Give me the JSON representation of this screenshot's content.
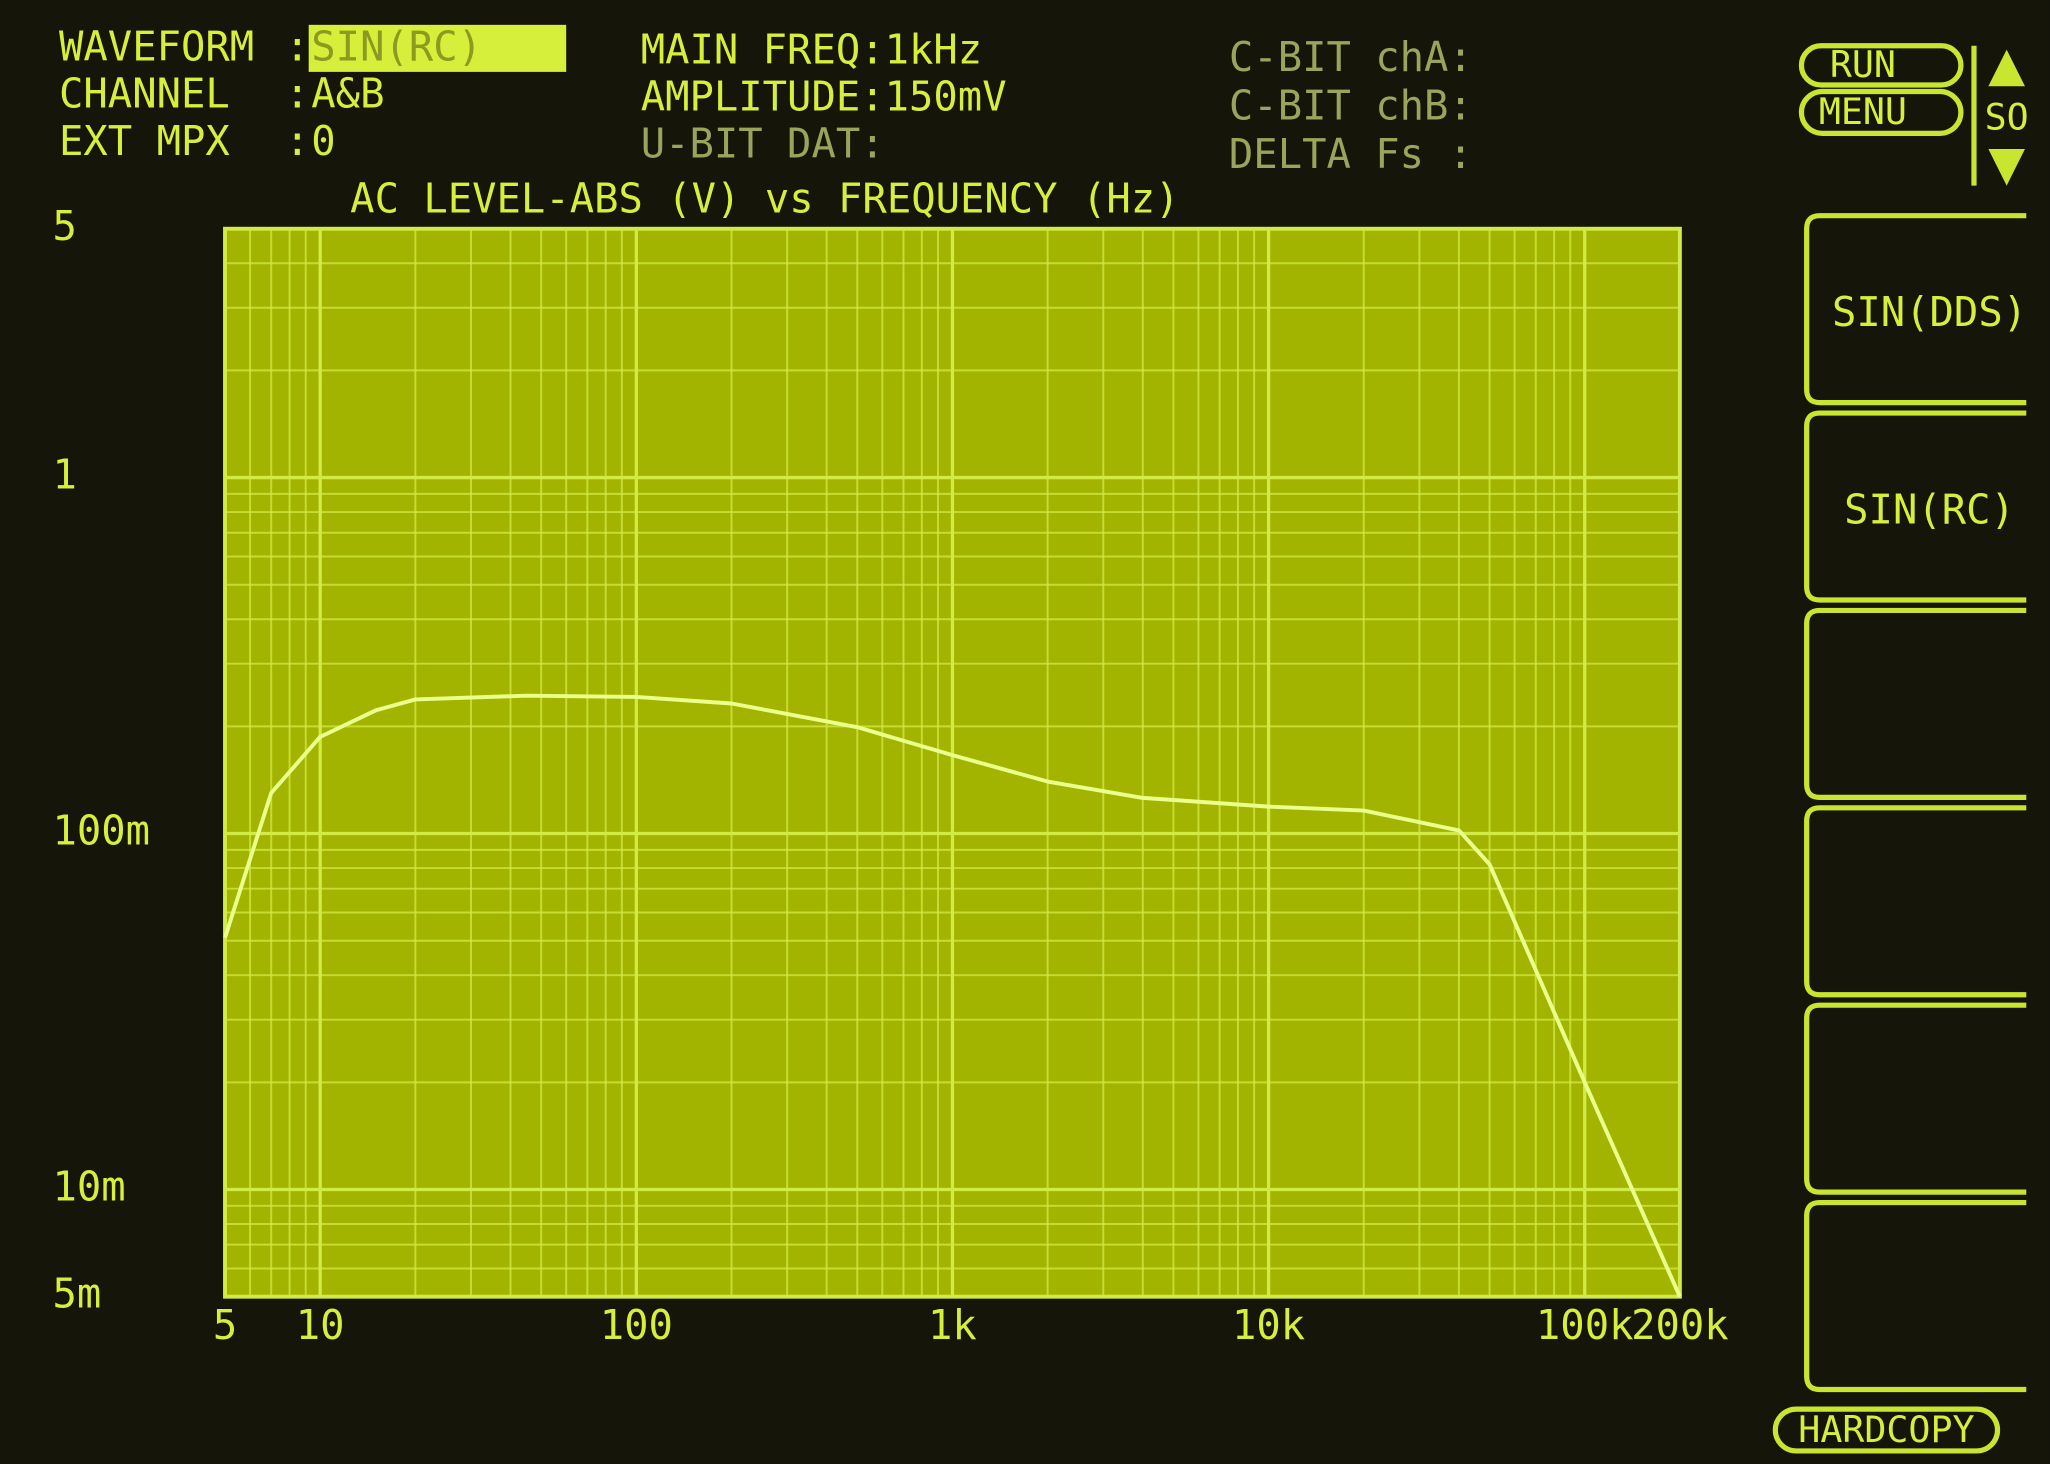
{
  "separator": ":",
  "status_left": [
    {
      "label": "WAVEFORM",
      "value": "SIN(RC)"
    },
    {
      "label": "CHANNEL",
      "value": "A&B"
    },
    {
      "label": "EXT MPX",
      "value": "0"
    }
  ],
  "status_middle": [
    "MAIN FREQ:1kHz",
    "AMPLITUDE:150mV",
    "U-BIT DAT:"
  ],
  "status_right": [
    "C-BIT chA:",
    "C-BIT chB:",
    "DELTA Fs :"
  ],
  "menu_buttons": [
    "RUN",
    "MENU"
  ],
  "scroll_label": "SO",
  "softkeys": [
    "SIN(DDS)",
    "SIN(RC)",
    "",
    "",
    "",
    ""
  ],
  "hardcopy": "HARDCOPY",
  "chart_data": {
    "type": "line",
    "title": "AC LEVEL-ABS (V) vs FREQUENCY (Hz)",
    "xscale": "log",
    "yscale": "log",
    "grid": true,
    "x": [
      5,
      7,
      10,
      15,
      20,
      45,
      100,
      200,
      500,
      1000,
      2000,
      4000,
      10000,
      20000,
      40000,
      50000,
      100000,
      200000
    ],
    "values": [
      0.051,
      0.13,
      0.187,
      0.222,
      0.238,
      0.244,
      0.242,
      0.232,
      0.199,
      0.166,
      0.14,
      0.126,
      0.119,
      0.116,
      0.102,
      0.082,
      0.02,
      0.005
    ],
    "color": "#eaff8c",
    "xlim": [
      5,
      200000
    ],
    "ylim": [
      0.005,
      5
    ],
    "xticks": [
      5,
      10,
      100,
      {
        "value": 1000,
        "label": "1k"
      },
      {
        "value": 10000,
        "label": "10k"
      },
      {
        "value": 100000,
        "label": "100k"
      },
      {
        "value": 200000,
        "label": "200k"
      }
    ],
    "yticks": [
      5,
      1,
      {
        "value": 0.1,
        "label": "100m"
      },
      {
        "value": 0.01,
        "label": "10m"
      },
      {
        "value": 0.005,
        "label": "5m"
      }
    ]
  }
}
